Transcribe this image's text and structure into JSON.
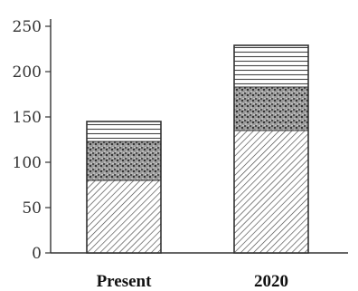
{
  "chart_data": {
    "type": "bar",
    "stacked": true,
    "categories": [
      "Present",
      "2020"
    ],
    "series": [
      {
        "values": [
          80,
          135
        ]
      },
      {
        "values": [
          43,
          48
        ]
      },
      {
        "values": [
          22,
          46
        ]
      }
    ],
    "series_patterns": [
      "diagonal-hatch",
      "stipple",
      "horizontal-lines"
    ],
    "yticks": [
      0,
      50,
      100,
      150,
      200,
      250
    ],
    "ytick_labels": [
      "0",
      "50",
      "100",
      "150",
      "200",
      "250"
    ],
    "ylim": [
      0,
      250
    ],
    "grid": false,
    "legend": "none",
    "colors": {
      "ink": "#333333",
      "stipple_fill": "#8a8a8a"
    }
  }
}
